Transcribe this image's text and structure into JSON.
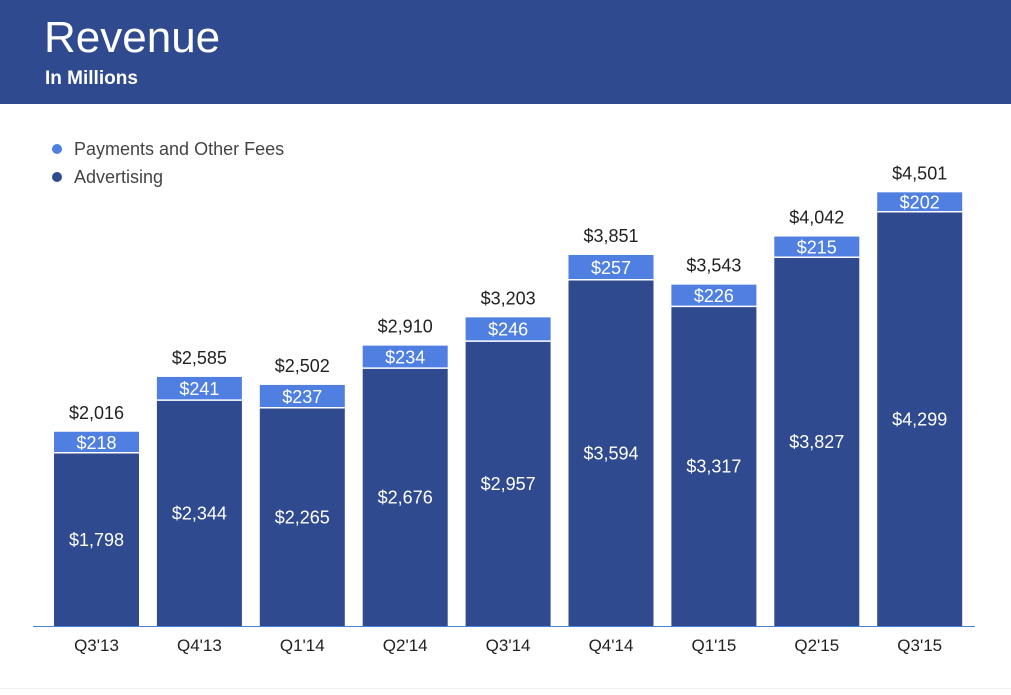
{
  "header": {
    "title": "Revenue",
    "subtitle": "In Millions"
  },
  "colors": {
    "header_bg": "#2f4a8e",
    "advertising": "#2f4a8e",
    "payments": "#4f7fe0",
    "axis": "#4f7fe0"
  },
  "chart_data": {
    "type": "bar",
    "stacked": true,
    "categories": [
      "Q3'13",
      "Q4'13",
      "Q1'14",
      "Q2'14",
      "Q3'14",
      "Q4'14",
      "Q1'15",
      "Q2'15",
      "Q3'15"
    ],
    "series": [
      {
        "name": "Advertising",
        "values": [
          1798,
          2344,
          2265,
          2676,
          2957,
          3594,
          3317,
          3827,
          4299
        ],
        "labels": [
          "$1,798",
          "$2,344",
          "$2,265",
          "$2,676",
          "$2,957",
          "$3,594",
          "$3,317",
          "$3,827",
          "$4,299"
        ]
      },
      {
        "name": "Payments and Other Fees",
        "values": [
          218,
          241,
          237,
          234,
          246,
          257,
          226,
          215,
          202
        ],
        "labels": [
          "$218",
          "$241",
          "$237",
          "$234",
          "$246",
          "$257",
          "$226",
          "$215",
          "$202"
        ]
      }
    ],
    "totals": [
      2016,
      2585,
      2502,
      2910,
      3203,
      3851,
      3543,
      4042,
      4501
    ],
    "total_labels": [
      "$2,016",
      "$2,585",
      "$2,502",
      "$2,910",
      "$3,203",
      "$3,851",
      "$3,543",
      "$4,042",
      "$4,501"
    ],
    "title": "Revenue",
    "subtitle": "In Millions",
    "ylim": [
      0,
      4800
    ],
    "grid": false,
    "legend": {
      "position": "top-left",
      "entries": [
        "Payments and Other Fees",
        "Advertising"
      ]
    }
  }
}
